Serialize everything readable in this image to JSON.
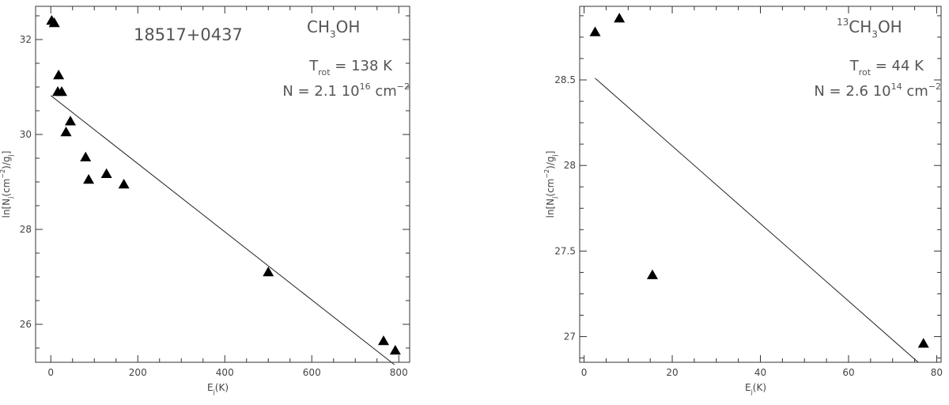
{
  "chart_data": [
    {
      "type": "scatter",
      "source_label": "18517+0437",
      "molecule": {
        "pre": "",
        "sup": "",
        "mid": "CH",
        "sub": "3",
        "post": "OH"
      },
      "trot": {
        "prefix": "T",
        "sub": "rot",
        "rest": " = 138 K"
      },
      "ncol": {
        "prefix": "N = 2.1 10",
        "sup1": "16",
        "mid": " cm",
        "sup2": "−2"
      },
      "xlabel": {
        "base": "E",
        "sub": "j",
        "rest": "(K)"
      },
      "ylabel": {
        "p1": "ln[N",
        "s1": "j",
        "p2": "(cm",
        "s2": "−2",
        "p3": ")/g",
        "s3": "j",
        "p4": "]"
      },
      "xlim": [
        -35,
        825
      ],
      "ylim": [
        25.2,
        32.7
      ],
      "xticks": [
        0,
        200,
        400,
        600,
        800
      ],
      "yticks": [
        26,
        28,
        30,
        32
      ],
      "points": [
        {
          "x": 2,
          "y": 32.4
        },
        {
          "x": 8,
          "y": 32.35
        },
        {
          "x": 18,
          "y": 31.25
        },
        {
          "x": 16,
          "y": 30.9
        },
        {
          "x": 25,
          "y": 30.9
        },
        {
          "x": 35,
          "y": 30.05
        },
        {
          "x": 45,
          "y": 30.28
        },
        {
          "x": 80,
          "y": 29.52
        },
        {
          "x": 87,
          "y": 29.05
        },
        {
          "x": 128,
          "y": 29.17
        },
        {
          "x": 168,
          "y": 28.95
        },
        {
          "x": 500,
          "y": 27.1
        },
        {
          "x": 765,
          "y": 25.65
        },
        {
          "x": 792,
          "y": 25.45
        }
      ],
      "fit": [
        {
          "x": 0,
          "y": 30.82
        },
        {
          "x": 790,
          "y": 25.15
        }
      ]
    },
    {
      "type": "scatter",
      "molecule": {
        "pre": "",
        "sup": "13",
        "mid": "CH",
        "sub": "3",
        "post": "OH"
      },
      "trot": {
        "prefix": "T",
        "sub": "rot",
        "rest": " = 44 K"
      },
      "ncol": {
        "prefix": "N = 2.6 10",
        "sup1": "14",
        "mid": " cm",
        "sup2": "−2"
      },
      "xlabel": {
        "base": "E",
        "sub": "j",
        "rest": "(K)"
      },
      "ylabel": {
        "p1": "ln[N",
        "s1": "j",
        "p2": "(cm",
        "s2": "−2",
        "p3": ")/g",
        "s3": "j",
        "p4": "]"
      },
      "xlim": [
        -1,
        81
      ],
      "ylim": [
        26.85,
        28.93
      ],
      "xticks": [
        0,
        20,
        40,
        60,
        80
      ],
      "yticks": [
        27,
        27.5,
        28,
        28.5
      ],
      "points": [
        {
          "x": 2.5,
          "y": 28.78
        },
        {
          "x": 8,
          "y": 28.86
        },
        {
          "x": 15.5,
          "y": 27.36
        },
        {
          "x": 77,
          "y": 26.96
        }
      ],
      "fit": [
        {
          "x": 2.5,
          "y": 28.51
        },
        {
          "x": 75.8,
          "y": 26.85
        }
      ]
    }
  ]
}
